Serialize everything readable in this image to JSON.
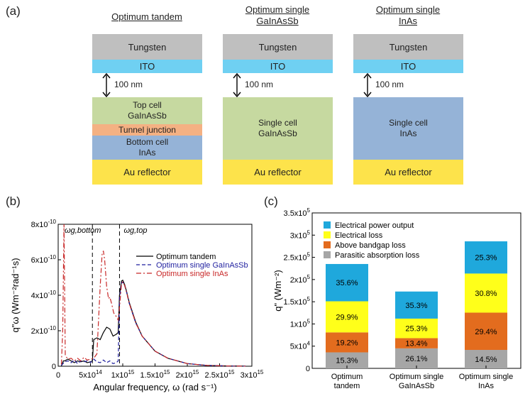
{
  "panel_a": {
    "label": "(a)",
    "stacks": [
      {
        "title": "Optimum tandem",
        "tungsten": "Tungsten",
        "ito": "ITO",
        "gap": "100 nm",
        "cells": [
          {
            "text": "Top cell\nGaInAsSb",
            "color": "#c6d9a0"
          },
          {
            "text": "Tunnel junction",
            "color": "#f4b183"
          },
          {
            "text": "Bottom cell\nInAs",
            "color": "#95b3d7"
          }
        ],
        "reflector": "Au reflector"
      },
      {
        "title": "Optimum single\nGaInAsSb",
        "tungsten": "Tungsten",
        "ito": "ITO",
        "gap": "100 nm",
        "cells": [
          {
            "text": "Single cell\nGaInAsSb",
            "color": "#c6d9a0"
          }
        ],
        "reflector": "Au reflector"
      },
      {
        "title": "Optimum single\nInAs",
        "tungsten": "Tungsten",
        "ito": "ITO",
        "gap": "100 nm",
        "cells": [
          {
            "text": "Single cell\nInAs",
            "color": "#95b3d7"
          }
        ],
        "reflector": "Au reflector"
      }
    ],
    "colors": {
      "tungsten": "#bfbfbf",
      "ito": "#6fd0f2",
      "reflector": "#fde34b"
    }
  },
  "panel_b": {
    "label": "(b)",
    "chart_data": {
      "type": "line",
      "xlabel": "Angular frequency, ω (rad s⁻¹)",
      "ylabel": "q\"ω (Wm⁻²rad⁻¹s)",
      "xlim": [
        0,
        3000000000000000.0
      ],
      "ylim": [
        0,
        8e-10
      ],
      "xticks": [
        "0",
        "5x10¹⁴",
        "1x10¹⁵",
        "1.5x10¹⁵",
        "2x10¹⁵",
        "2.5x10¹⁵",
        "3x10¹⁵"
      ],
      "yticks": [
        "0",
        "2x10⁻¹⁰",
        "4x10⁻¹⁰",
        "6x10⁻¹⁰",
        "8x10⁻¹⁰"
      ],
      "annotations": [
        {
          "text": "ωg,bottom",
          "x": 530000000000000.0
        },
        {
          "text": "ωg,top",
          "x": 950000000000000.0
        }
      ],
      "series": [
        {
          "name": "Optimum tandem",
          "color": "#000000",
          "style": "solid",
          "x": [
            50000000000000.0,
            80000000000000.0,
            100000000000000.0,
            150000000000000.0,
            200000000000000.0,
            250000000000000.0,
            300000000000000.0,
            350000000000000.0,
            400000000000000.0,
            450000000000000.0,
            500000000000000.0,
            530000000000000.0,
            550000000000000.0,
            600000000000000.0,
            650000000000000.0,
            700000000000000.0,
            750000000000000.0,
            800000000000000.0,
            850000000000000.0,
            900000000000000.0,
            930000000000000.0,
            950000000000000.0,
            980000000000000.0,
            1000000000000000.0,
            1030000000000000.0,
            1060000000000000.0,
            1100000000000000.0,
            1200000000000000.0,
            1300000000000000.0,
            1500000000000000.0,
            1700000000000000.0,
            2000000000000000.0,
            2300000000000000.0,
            2600000000000000.0,
            2900000000000000.0
          ],
          "y": [
            1e-12,
            3e-11,
            3e-11,
            4e-11,
            3e-11,
            2e-11,
            3e-11,
            2.5e-11,
            3e-11,
            2e-11,
            2.5e-11,
            3e-11,
            1.5e-10,
            1.6e-10,
            1.5e-10,
            1.9e-10,
            2.2e-10,
            2.1e-10,
            1.7e-10,
            1.8e-10,
            1.9e-10,
            4e-10,
            4.8e-10,
            4.85e-10,
            4.6e-10,
            4.2e-10,
            3.6e-10,
            2.5e-10,
            1.7e-10,
            8.5e-11,
            4.5e-11,
            1.5e-11,
            5e-12,
            1.5e-12,
            3e-13
          ]
        },
        {
          "name": "Optimum single GaInAsSb",
          "color": "#1f1f9f",
          "style": "dashed",
          "x": [
            50000000000000.0,
            100000000000000.0,
            150000000000000.0,
            200000000000000.0,
            250000000000000.0,
            300000000000000.0,
            350000000000000.0,
            400000000000000.0,
            450000000000000.0,
            500000000000000.0,
            550000000000000.0,
            600000000000000.0,
            650000000000000.0,
            700000000000000.0,
            750000000000000.0,
            800000000000000.0,
            850000000000000.0,
            900000000000000.0,
            930000000000000.0,
            950000000000000.0,
            980000000000000.0,
            1000000000000000.0,
            1030000000000000.0,
            1060000000000000.0,
            1100000000000000.0,
            1200000000000000.0,
            1300000000000000.0,
            1500000000000000.0,
            1700000000000000.0,
            2000000000000000.0,
            2300000000000000.0,
            2600000000000000.0,
            2900000000000000.0
          ],
          "y": [
            5e-12,
            2.5e-11,
            3e-11,
            2e-11,
            3.5e-11,
            1.5e-11,
            3e-11,
            2.5e-11,
            3e-11,
            2e-11,
            4e-11,
            2.5e-11,
            2e-11,
            3.5e-11,
            2e-11,
            3e-11,
            1.5e-11,
            2e-11,
            3e-11,
            3.8e-10,
            4.7e-10,
            4.75e-10,
            4.55e-10,
            4.15e-10,
            3.55e-10,
            2.45e-10,
            1.7e-10,
            8.5e-11,
            4.5e-11,
            1.5e-11,
            5e-12,
            1.5e-12,
            3e-13
          ]
        },
        {
          "name": "Optimum single InAs",
          "color": "#c82828",
          "style": "dashdot",
          "x": [
            50000000000000.0,
            70000000000000.0,
            90000000000000.0,
            110000000000000.0,
            150000000000000.0,
            200000000000000.0,
            250000000000000.0,
            300000000000000.0,
            350000000000000.0,
            400000000000000.0,
            450000000000000.0,
            500000000000000.0,
            550000000000000.0,
            600000000000000.0,
            650000000000000.0,
            680000000000000.0,
            700000000000000.0,
            720000000000000.0,
            750000000000000.0,
            780000000000000.0,
            800000000000000.0,
            830000000000000.0,
            860000000000000.0,
            900000000000000.0,
            930000000000000.0,
            950000000000000.0,
            980000000000000.0,
            1000000000000000.0,
            1030000000000000.0,
            1060000000000000.0,
            1100000000000000.0,
            1200000000000000.0,
            1300000000000000.0,
            1500000000000000.0,
            1700000000000000.0,
            2000000000000000.0,
            2300000000000000.0,
            2600000000000000.0,
            2900000000000000.0
          ],
          "y": [
            1e-11,
            2e-10,
            8e-10,
            6e-11,
            4e-11,
            4.5e-11,
            3e-11,
            4.5e-11,
            3e-11,
            5e-11,
            3.5e-11,
            4e-11,
            4.5e-11,
            7e-11,
            4.5e-10,
            6.3e-10,
            6.5e-10,
            6e-10,
            4.5e-10,
            3.8e-10,
            3.9e-10,
            3.5e-10,
            3e-10,
            2.8e-10,
            2.6e-10,
            3.3e-10,
            4.6e-10,
            4.75e-10,
            4.55e-10,
            4.15e-10,
            3.55e-10,
            2.45e-10,
            1.7e-10,
            8.5e-11,
            4.5e-11,
            1.5e-11,
            5e-12,
            1.5e-12,
            3e-13
          ]
        }
      ]
    }
  },
  "panel_c": {
    "label": "(c)",
    "chart_data": {
      "type": "bar",
      "stacked": true,
      "ylabel": "q\" (Wm⁻²)",
      "ylim": [
        0,
        350000
      ],
      "yticks": [
        "0",
        "5x10⁴",
        "1x10⁵",
        "1.5x10⁵",
        "2x10⁵",
        "2.5x10⁵",
        "3x10⁵",
        "3.5x10⁵"
      ],
      "categories": [
        "Optimum\ntandem",
        "Optimum single\nGaInAsSb",
        "Optimum single\nInAs"
      ],
      "legend": [
        "Electrical power output",
        "Electrical loss",
        "Above bandgap loss",
        "Parasitic absorption loss"
      ],
      "series": [
        {
          "name": "Parasitic absorption loss",
          "color": "#a6a6a6",
          "values": [
            36000,
            45000,
            41500
          ],
          "labels": [
            "15.3%",
            "26.1%",
            "14.5%"
          ]
        },
        {
          "name": "Above bandgap loss",
          "color": "#e36c1e",
          "values": [
            45000,
            23000,
            84000
          ],
          "labels": [
            "19.2%",
            "13.4%",
            "29.4%"
          ]
        },
        {
          "name": "Electrical loss",
          "color": "#ffff1a",
          "values": [
            70000,
            44000,
            88000
          ],
          "labels": [
            "29.9%",
            "25.3%",
            "30.8%"
          ]
        },
        {
          "name": "Electrical power output",
          "color": "#1fa8dc",
          "values": [
            84000,
            61000,
            72500
          ],
          "labels": [
            "35.6%",
            "35.3%",
            "25.3%"
          ]
        }
      ]
    }
  }
}
